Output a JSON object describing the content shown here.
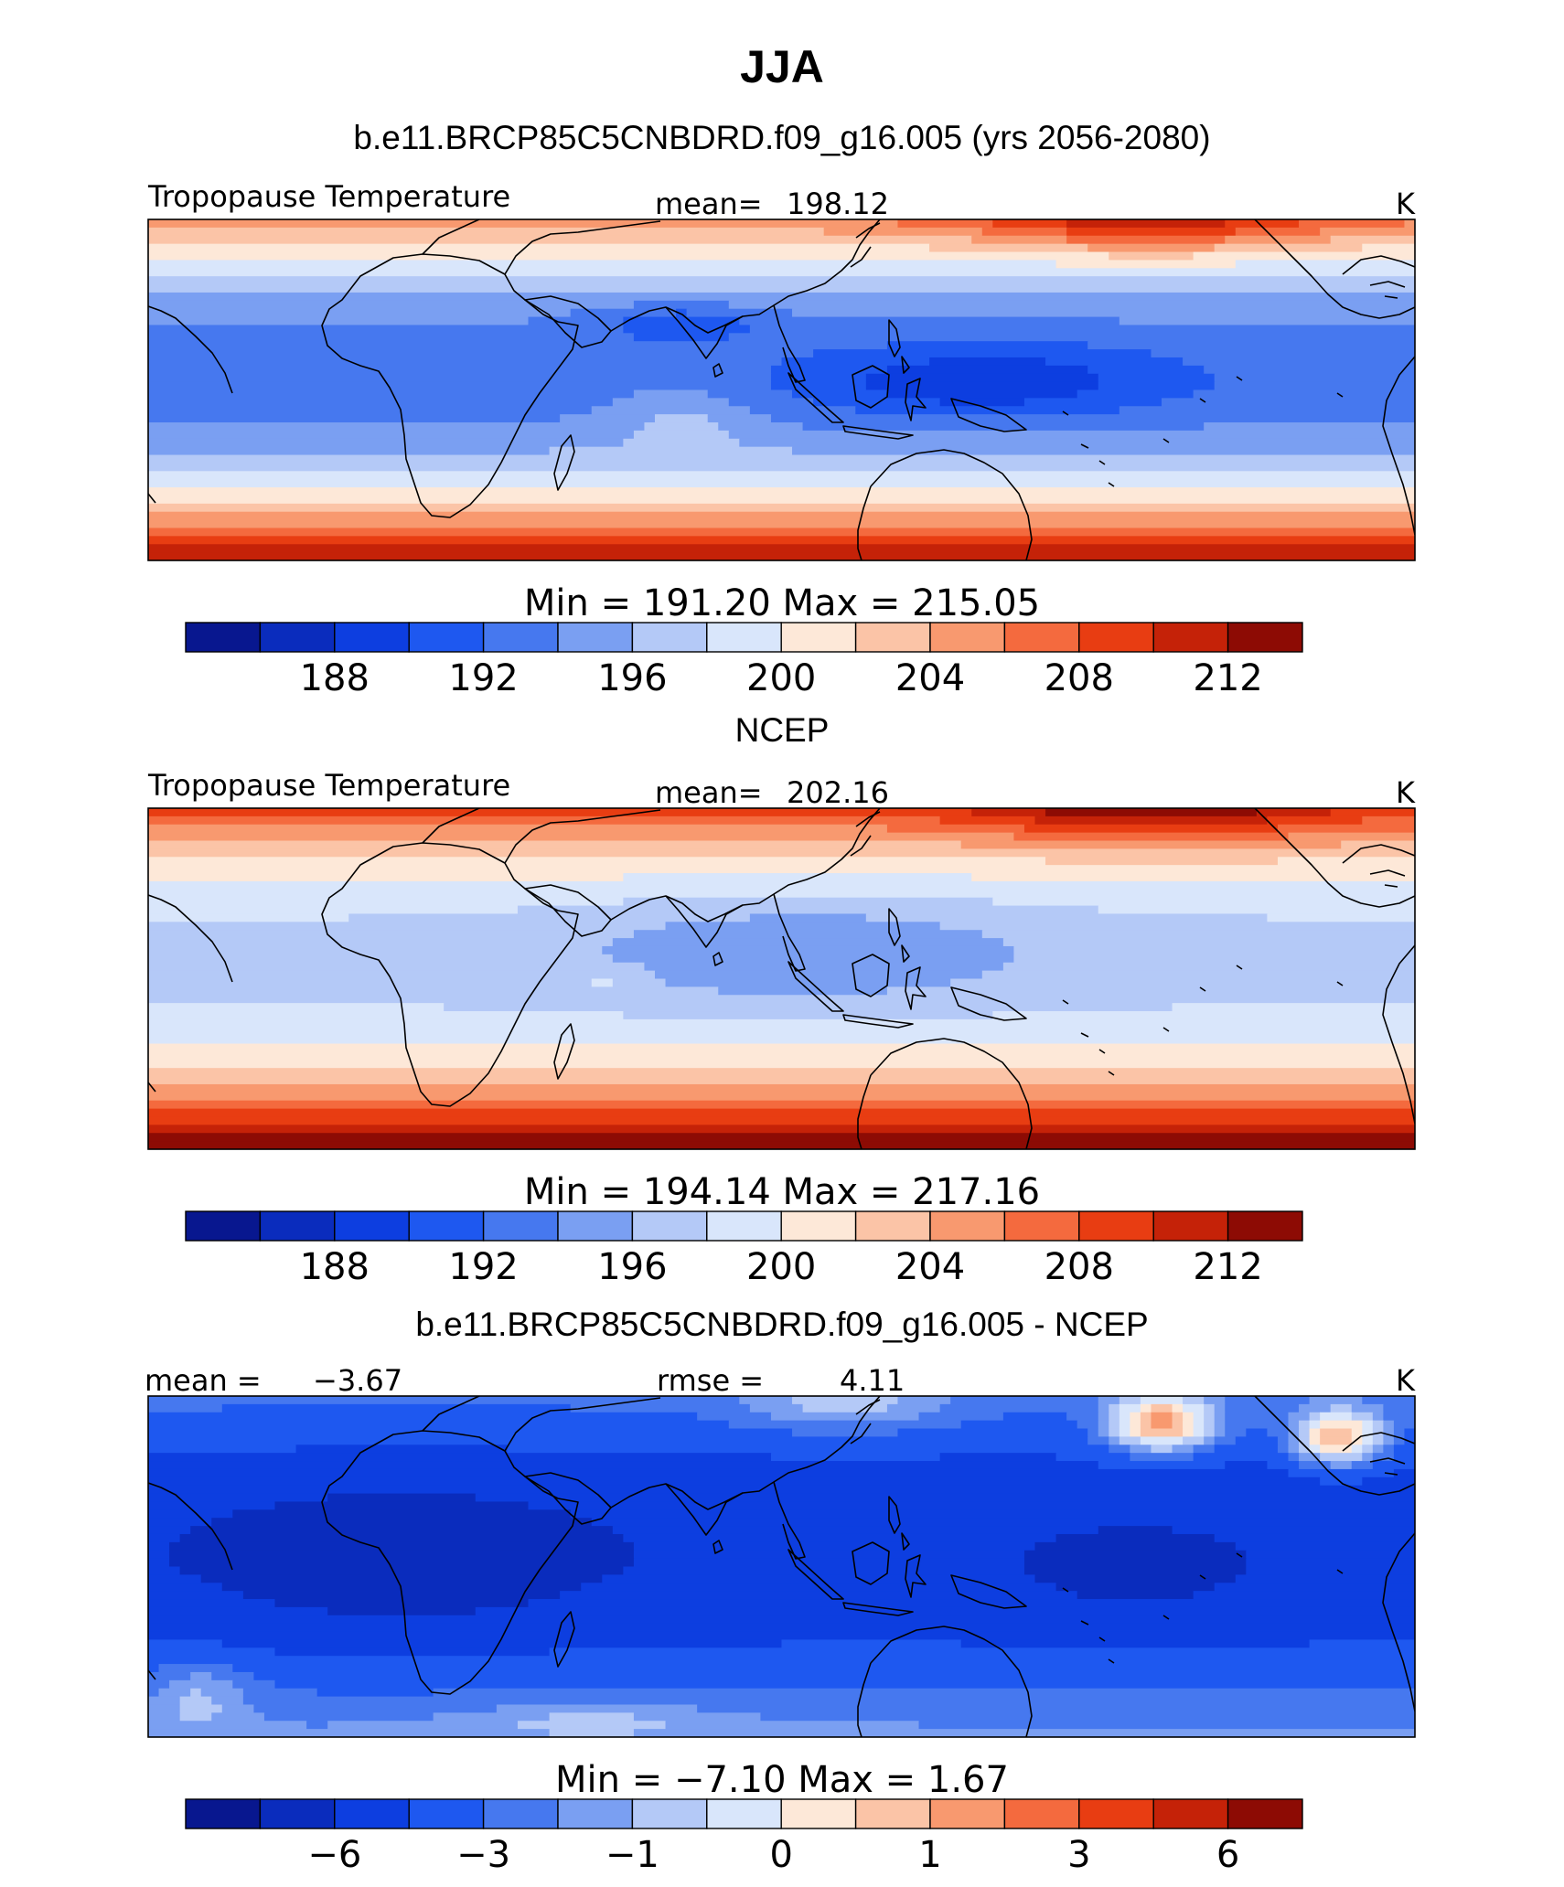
{
  "figure": {
    "season": "JJA",
    "model_title": "b.e11.BRCP85C5CNBDRD.f09_g16.005 (yrs 2056-2080)",
    "obs_title": "NCEP",
    "diff_title": "b.e11.BRCP85C5CNBDRD.f09_g16.005 - NCEP"
  },
  "colors": {
    "palette": [
      "#08178f",
      "#0a2cbd",
      "#0d3ee0",
      "#1e58f0",
      "#4678ef",
      "#7a9ff2",
      "#b4c9f7",
      "#d9e6fb",
      "#fde8d8",
      "#fbc4a7",
      "#f8996f",
      "#f46a3e",
      "#e83d12",
      "#c52208",
      "#8d0b04"
    ]
  },
  "chart_data": [
    {
      "type": "heatmap",
      "panel": "model",
      "variable": "Tropopause Temperature",
      "units": "K",
      "mean_label": "mean=",
      "mean_value": "198.12",
      "minmax": "Min = 191.20 Max = 215.05",
      "colorbar_ticks": [
        "188",
        "192",
        "196",
        "200",
        "204",
        "208",
        "212"
      ],
      "min": 191.2,
      "max": 215.05
    },
    {
      "type": "heatmap",
      "panel": "obs",
      "variable": "Tropopause Temperature",
      "units": "K",
      "mean_label": "mean=",
      "mean_value": "202.16",
      "minmax": "Min = 194.14 Max = 217.16",
      "colorbar_ticks": [
        "188",
        "192",
        "196",
        "200",
        "204",
        "208",
        "212"
      ],
      "min": 194.14,
      "max": 217.16
    },
    {
      "type": "heatmap",
      "panel": "difference",
      "units": "K",
      "mean_label": "mean =",
      "mean_value": "−3.67",
      "rmse_label": "rmse =",
      "rmse_value": "4.11",
      "minmax": "Min = −7.10 Max = 1.67",
      "colorbar_ticks": [
        "−6",
        "−3",
        "−1",
        "0",
        "1",
        "3",
        "6"
      ],
      "min": -7.1,
      "max": 1.67
    }
  ]
}
